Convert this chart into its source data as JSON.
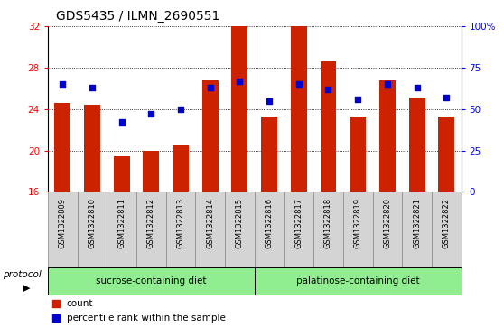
{
  "title": "GDS5435 / ILMN_2690551",
  "samples": [
    "GSM1322809",
    "GSM1322810",
    "GSM1322811",
    "GSM1322812",
    "GSM1322813",
    "GSM1322814",
    "GSM1322815",
    "GSM1322816",
    "GSM1322817",
    "GSM1322818",
    "GSM1322819",
    "GSM1322820",
    "GSM1322821",
    "GSM1322822"
  ],
  "count_values": [
    24.6,
    24.4,
    19.4,
    20.0,
    20.5,
    26.8,
    32.0,
    23.3,
    32.0,
    28.6,
    23.3,
    26.8,
    25.1,
    23.3
  ],
  "percentile_values": [
    65,
    63,
    42,
    47,
    50,
    63,
    67,
    55,
    65,
    62,
    56,
    65,
    63,
    57
  ],
  "bar_color": "#CC2200",
  "dot_color": "#0000CC",
  "ylim_left": [
    16,
    32
  ],
  "ylim_right": [
    0,
    100
  ],
  "yticks_left": [
    16,
    20,
    24,
    28,
    32
  ],
  "yticks_right": [
    0,
    25,
    50,
    75,
    100
  ],
  "ytick_labels_right": [
    "0",
    "25",
    "50",
    "75",
    "100%"
  ],
  "group1_label": "sucrose-containing diet",
  "group2_label": "palatinose-containing diet",
  "group1_count": 7,
  "group2_count": 7,
  "protocol_label": "protocol",
  "legend_count_label": "count",
  "legend_percentile_label": "percentile rank within the sample",
  "group_bg_color": "#90EE90",
  "bar_width": 0.55,
  "dot_size": 22
}
